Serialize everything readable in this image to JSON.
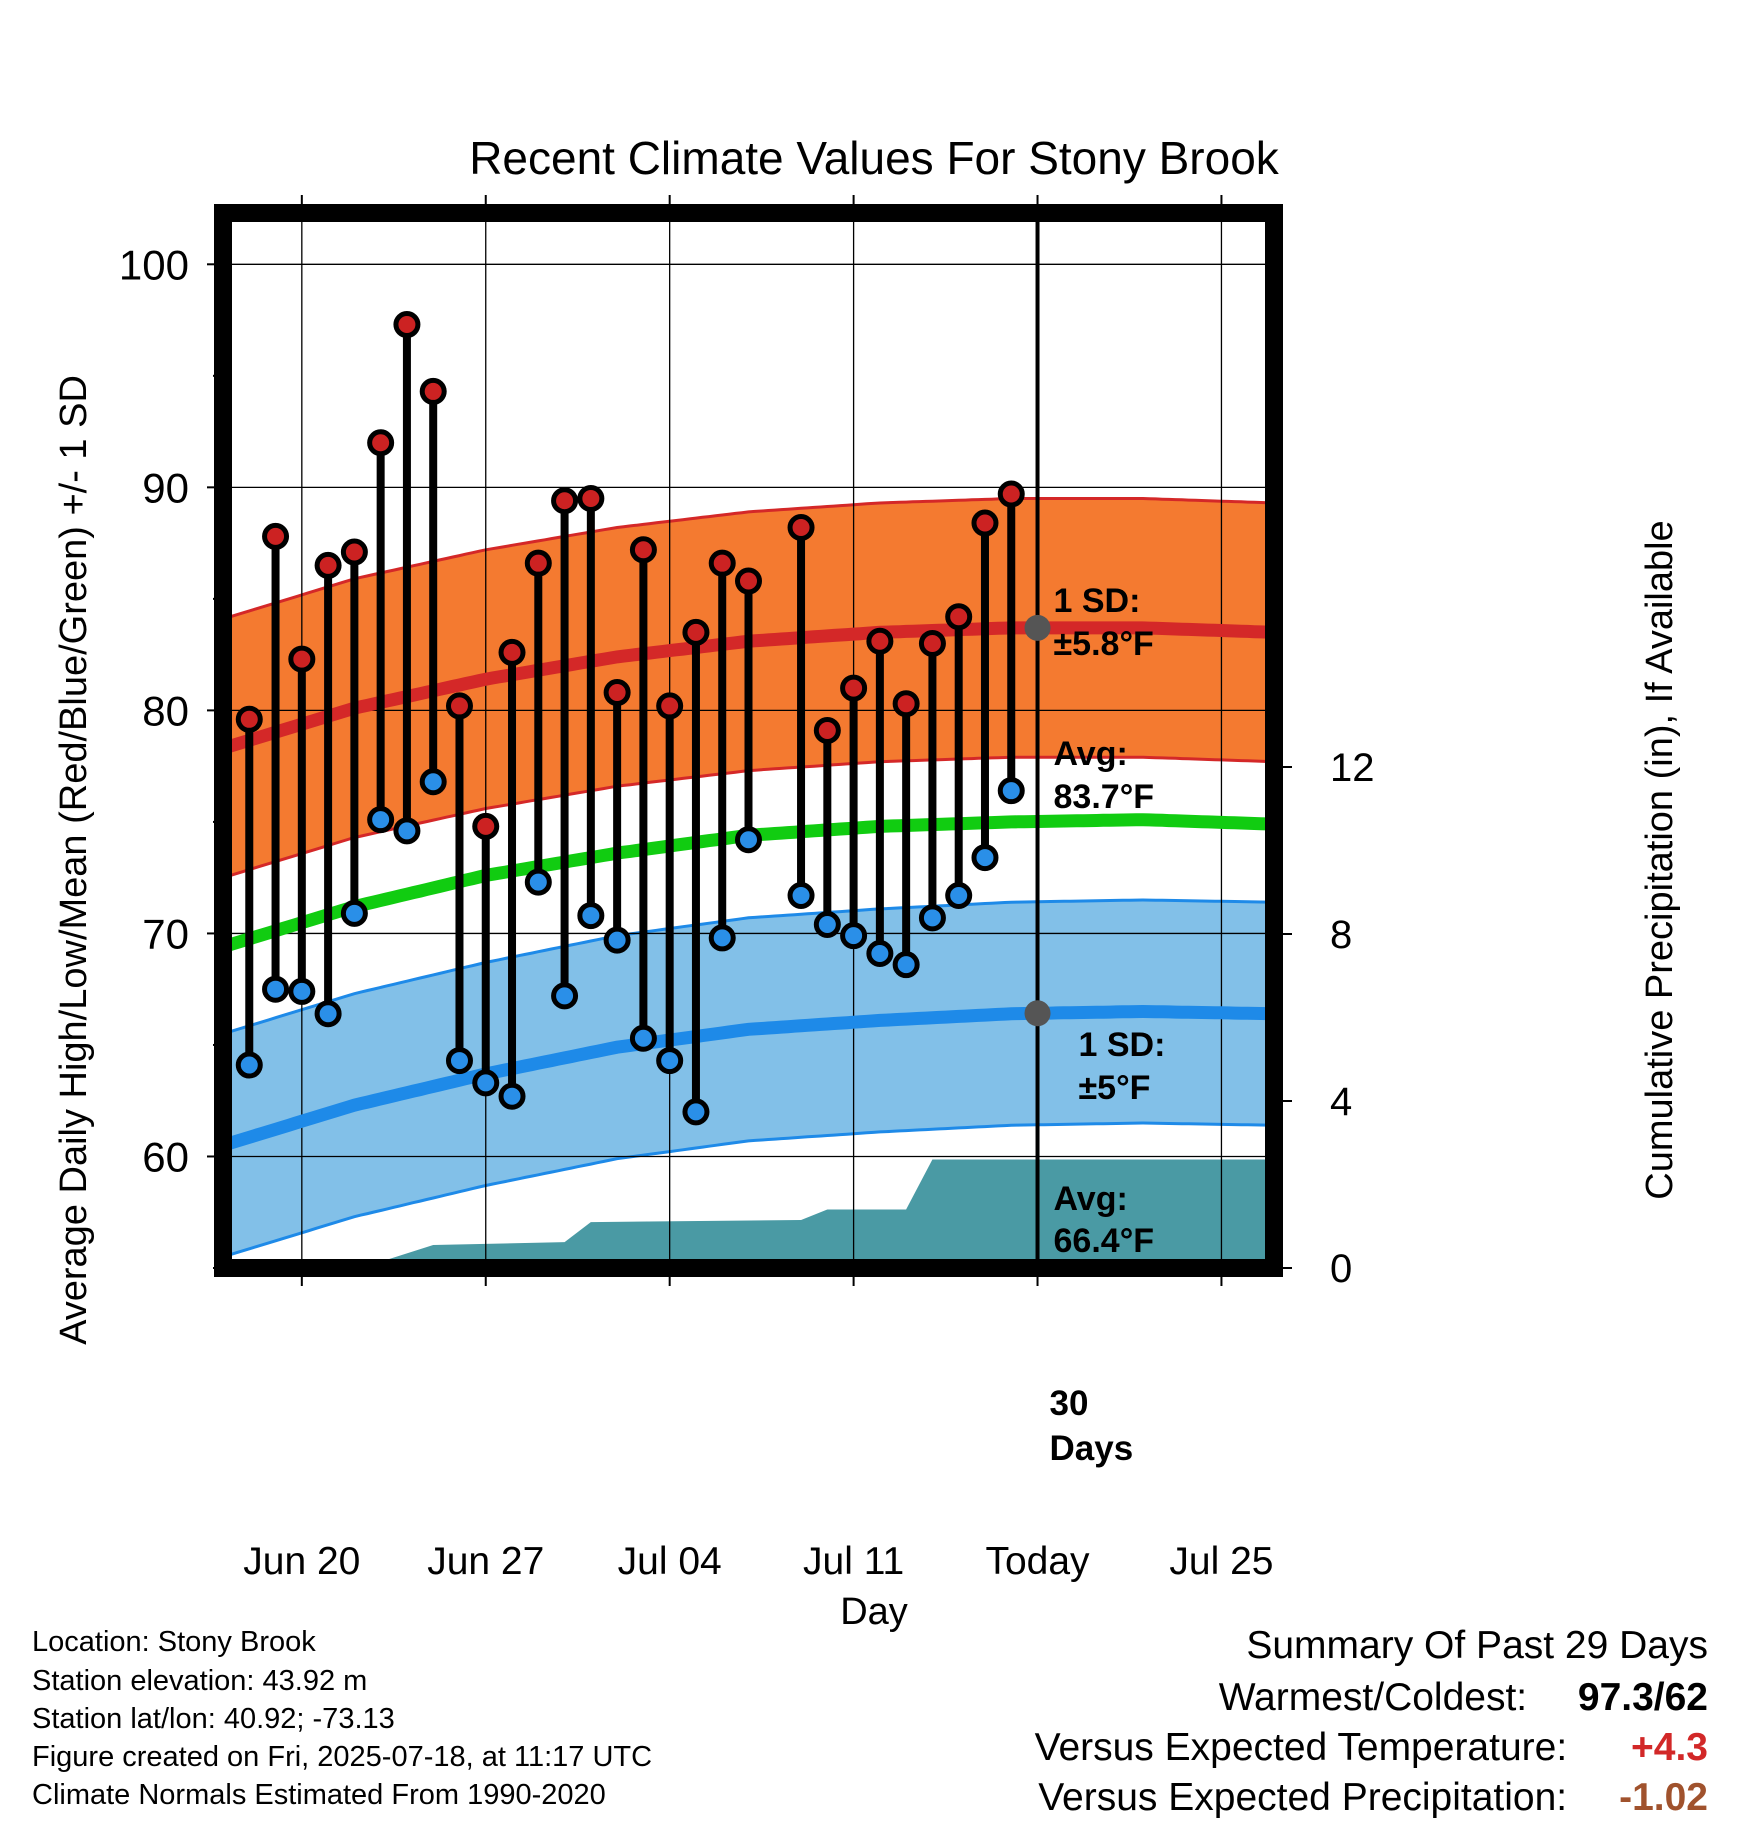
{
  "chart_data": {
    "type": "line",
    "title": "Recent Climate Values For Stony Brook",
    "xlabel": "Day",
    "ylabel_left": "Average Daily High/Low/Mean (Red/Blue/Green) +/- 1 SD",
    "ylabel_right": "Cumulative Precipitation (in), If Available",
    "x_tick_labels": [
      "Jun 20",
      "Jun 27",
      "Jul 04",
      "Jul 11",
      "Today",
      "Jul 25"
    ],
    "x_range": [
      "2025-06-17",
      "2025-07-27"
    ],
    "ylim": [
      55,
      102.3
    ],
    "y_ticks": [
      60,
      70,
      80,
      90,
      100
    ],
    "y2lim": [
      0,
      12
    ],
    "y2_ticks": [
      0,
      4,
      8,
      12
    ],
    "grid": true,
    "today_date": "2025-07-18",
    "today_label": "Today",
    "series": [
      {
        "name": "High",
        "color": "#cc2222",
        "dates": [
          "2025-06-18",
          "2025-06-19",
          "2025-06-20",
          "2025-06-21",
          "2025-06-22",
          "2025-06-23",
          "2025-06-24",
          "2025-06-25",
          "2025-06-26",
          "2025-06-27",
          "2025-06-28",
          "2025-06-29",
          "2025-06-30",
          "2025-07-01",
          "2025-07-02",
          "2025-07-03",
          "2025-07-04",
          "2025-07-05",
          "2025-07-06",
          "2025-07-07",
          "2025-07-09",
          "2025-07-10",
          "2025-07-11",
          "2025-07-12",
          "2025-07-13",
          "2025-07-14",
          "2025-07-15",
          "2025-07-16",
          "2025-07-17"
        ],
        "values": [
          79.6,
          87.8,
          82.3,
          86.5,
          87.1,
          92.0,
          97.3,
          94.3,
          80.2,
          74.8,
          82.6,
          86.6,
          89.4,
          89.5,
          80.8,
          87.2,
          80.2,
          83.5,
          86.6,
          85.8,
          88.2,
          79.1,
          81.0,
          83.1,
          80.3,
          83.0,
          84.2,
          88.4,
          89.7
        ]
      },
      {
        "name": "Low",
        "color": "#2a8fe8",
        "dates": [
          "2025-06-18",
          "2025-06-19",
          "2025-06-20",
          "2025-06-21",
          "2025-06-22",
          "2025-06-23",
          "2025-06-24",
          "2025-06-25",
          "2025-06-26",
          "2025-06-27",
          "2025-06-28",
          "2025-06-29",
          "2025-06-30",
          "2025-07-01",
          "2025-07-02",
          "2025-07-03",
          "2025-07-04",
          "2025-07-05",
          "2025-07-06",
          "2025-07-07",
          "2025-07-09",
          "2025-07-10",
          "2025-07-11",
          "2025-07-12",
          "2025-07-13",
          "2025-07-14",
          "2025-07-15",
          "2025-07-16",
          "2025-07-17"
        ],
        "values": [
          64.1,
          67.5,
          67.4,
          66.4,
          70.9,
          75.1,
          74.6,
          76.8,
          64.3,
          63.3,
          62.7,
          72.3,
          67.2,
          70.8,
          69.7,
          65.3,
          64.3,
          62.0,
          69.8,
          74.2,
          71.7,
          70.4,
          69.9,
          69.1,
          68.6,
          70.7,
          71.7,
          73.4,
          76.4
        ]
      }
    ],
    "normals": {
      "dates": [
        "2025-06-17",
        "2025-06-22",
        "2025-06-27",
        "2025-07-02",
        "2025-07-07",
        "2025-07-12",
        "2025-07-17",
        "2025-07-22",
        "2025-07-27"
      ],
      "high_avg": [
        78.3,
        80.1,
        81.4,
        82.4,
        83.1,
        83.5,
        83.7,
        83.7,
        83.5
      ],
      "high_sd": 5.8,
      "low_avg": [
        60.5,
        62.3,
        63.7,
        64.9,
        65.7,
        66.1,
        66.4,
        66.5,
        66.4
      ],
      "low_sd": 5.0,
      "mean_avg": [
        69.4,
        71.2,
        72.6,
        73.6,
        74.4,
        74.8,
        75.0,
        75.1,
        74.9
      ]
    },
    "precipitation": {
      "dates": [
        "2025-06-17",
        "2025-06-19",
        "2025-06-23",
        "2025-06-25",
        "2025-06-30",
        "2025-07-01",
        "2025-07-09",
        "2025-07-10",
        "2025-07-13",
        "2025-07-14",
        "2025-07-27"
      ],
      "values": [
        0.0,
        0.1,
        0.15,
        0.55,
        0.62,
        1.1,
        1.15,
        1.4,
        1.4,
        2.6,
        2.6
      ]
    },
    "colors": {
      "high_band": "#f47a30",
      "high_band_edge": "#d42828",
      "high_line": "#d42828",
      "low_band": "#82c0e8",
      "low_band_edge": "#1e8ae8",
      "low_line": "#1e8ae8",
      "mean_line": "#11cc11",
      "precip": "#4a9aa4",
      "annotation": "#555555"
    },
    "annotations": {
      "high_sd_label": "1 SD:",
      "high_sd_value": "±5.8°F",
      "high_avg_label": "Avg:",
      "high_avg_value": "83.7°F",
      "low_sd_label": "1 SD:",
      "low_sd_value": "±5°F",
      "low_avg_label": "Avg:",
      "low_avg_value": "66.4°F",
      "days_number": "30",
      "days_word": "Days"
    }
  },
  "station_info": [
    "Location: Stony Brook",
    "Station elevation: 43.92 m",
    "Station lat/lon: 40.92; -73.13",
    "Figure created on Fri, 2025-07-18, at 11:17 UTC",
    "Climate Normals Estimated From 1990-2020"
  ],
  "summary": {
    "title": "Summary Of Past 29 Days",
    "warmest_label": "Warmest/Coldest:",
    "warmest_value": "97.3/62",
    "temp_label": "Versus Expected Temperature:",
    "temp_value": "+4.3",
    "temp_color": "#d22828",
    "precip_label": "Versus Expected Precipitation:",
    "precip_value": "-1.02",
    "precip_color": "#a0522d"
  }
}
